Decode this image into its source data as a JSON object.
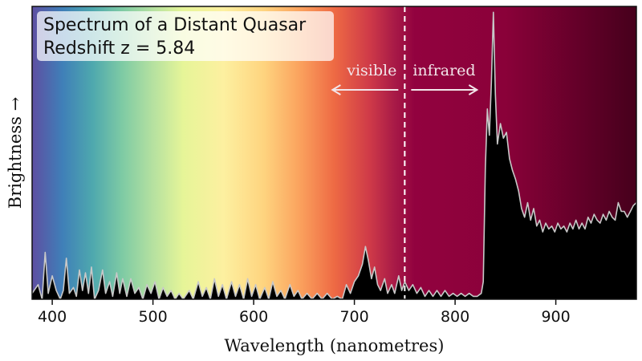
{
  "chart_data": {
    "type": "area",
    "title": "Spectrum of a Distant Quasar",
    "subtitle": "Redshift z = 5.84",
    "xlabel": "Wavelength (nanometres)",
    "ylabel": "Brightness →",
    "xlim": [
      380,
      980
    ],
    "ylim": [
      0,
      1
    ],
    "xticks": [
      400,
      500,
      600,
      700,
      800,
      900
    ],
    "yticks": [],
    "grid": false,
    "divider_x": 750,
    "annotations": [
      {
        "text": "visible",
        "direction": "left"
      },
      {
        "text": "infrared",
        "direction": "right"
      }
    ],
    "background_gradient": [
      {
        "x": 380,
        "color": "#5e4fa2"
      },
      {
        "x": 410,
        "color": "#3f7fb8"
      },
      {
        "x": 440,
        "color": "#4ea8ae"
      },
      {
        "x": 470,
        "color": "#7fcba4"
      },
      {
        "x": 500,
        "color": "#b5e1a0"
      },
      {
        "x": 530,
        "color": "#e6f598"
      },
      {
        "x": 570,
        "color": "#fdf0a0"
      },
      {
        "x": 610,
        "color": "#fed47f"
      },
      {
        "x": 645,
        "color": "#fba35e"
      },
      {
        "x": 680,
        "color": "#ee6a44"
      },
      {
        "x": 715,
        "color": "#cf3a48"
      },
      {
        "x": 740,
        "color": "#a81a47"
      },
      {
        "x": 760,
        "color": "#92023f"
      },
      {
        "x": 850,
        "color": "#8a0139"
      },
      {
        "x": 980,
        "color": "#46001c"
      }
    ],
    "series": [
      {
        "values": [
          [
            380,
            0.02
          ],
          [
            386,
            0.05
          ],
          [
            390,
            0.0
          ],
          [
            393,
            0.16
          ],
          [
            396,
            0.02
          ],
          [
            400,
            0.08
          ],
          [
            404,
            0.03
          ],
          [
            408,
            0.0
          ],
          [
            411,
            0.03
          ],
          [
            414,
            0.14
          ],
          [
            417,
            0.02
          ],
          [
            421,
            0.04
          ],
          [
            424,
            0.01
          ],
          [
            427,
            0.1
          ],
          [
            430,
            0.03
          ],
          [
            433,
            0.09
          ],
          [
            436,
            0.02
          ],
          [
            439,
            0.11
          ],
          [
            442,
            0.0
          ],
          [
            446,
            0.03
          ],
          [
            450,
            0.1
          ],
          [
            453,
            0.02
          ],
          [
            457,
            0.06
          ],
          [
            460,
            0.01
          ],
          [
            464,
            0.09
          ],
          [
            467,
            0.02
          ],
          [
            470,
            0.07
          ],
          [
            474,
            0.01
          ],
          [
            478,
            0.07
          ],
          [
            482,
            0.02
          ],
          [
            486,
            0.04
          ],
          [
            490,
            0.0
          ],
          [
            494,
            0.05
          ],
          [
            498,
            0.02
          ],
          [
            502,
            0.06
          ],
          [
            506,
            0.0
          ],
          [
            510,
            0.04
          ],
          [
            514,
            0.01
          ],
          [
            518,
            0.03
          ],
          [
            522,
            0.0
          ],
          [
            526,
            0.02
          ],
          [
            530,
            0.0
          ],
          [
            536,
            0.03
          ],
          [
            540,
            0.0
          ],
          [
            545,
            0.06
          ],
          [
            549,
            0.01
          ],
          [
            553,
            0.04
          ],
          [
            557,
            0.0
          ],
          [
            561,
            0.07
          ],
          [
            565,
            0.01
          ],
          [
            569,
            0.05
          ],
          [
            573,
            0.0
          ],
          [
            578,
            0.06
          ],
          [
            582,
            0.01
          ],
          [
            586,
            0.05
          ],
          [
            590,
            0.0
          ],
          [
            594,
            0.07
          ],
          [
            598,
            0.01
          ],
          [
            602,
            0.05
          ],
          [
            606,
            0.0
          ],
          [
            611,
            0.04
          ],
          [
            615,
            0.0
          ],
          [
            619,
            0.06
          ],
          [
            623,
            0.01
          ],
          [
            627,
            0.03
          ],
          [
            631,
            0.0
          ],
          [
            636,
            0.05
          ],
          [
            640,
            0.01
          ],
          [
            644,
            0.03
          ],
          [
            648,
            0.0
          ],
          [
            653,
            0.02
          ],
          [
            658,
            0.0
          ],
          [
            663,
            0.02
          ],
          [
            668,
            0.0
          ],
          [
            673,
            0.02
          ],
          [
            678,
            0.0
          ],
          [
            683,
            0.01
          ],
          [
            688,
            0.0
          ],
          [
            692,
            0.05
          ],
          [
            696,
            0.02
          ],
          [
            700,
            0.06
          ],
          [
            704,
            0.08
          ],
          [
            708,
            0.12
          ],
          [
            711,
            0.18
          ],
          [
            714,
            0.13
          ],
          [
            717,
            0.07
          ],
          [
            720,
            0.11
          ],
          [
            723,
            0.05
          ],
          [
            726,
            0.03
          ],
          [
            730,
            0.07
          ],
          [
            733,
            0.02
          ],
          [
            737,
            0.05
          ],
          [
            740,
            0.02
          ],
          [
            744,
            0.08
          ],
          [
            747,
            0.03
          ],
          [
            750,
            0.06
          ],
          [
            754,
            0.03
          ],
          [
            758,
            0.05
          ],
          [
            762,
            0.02
          ],
          [
            766,
            0.04
          ],
          [
            770,
            0.01
          ],
          [
            774,
            0.03
          ],
          [
            778,
            0.01
          ],
          [
            782,
            0.03
          ],
          [
            786,
            0.01
          ],
          [
            790,
            0.03
          ],
          [
            794,
            0.01
          ],
          [
            798,
            0.02
          ],
          [
            802,
            0.01
          ],
          [
            806,
            0.02
          ],
          [
            810,
            0.01
          ],
          [
            814,
            0.02
          ],
          [
            818,
            0.01
          ],
          [
            822,
            0.01
          ],
          [
            826,
            0.02
          ],
          [
            828,
            0.06
          ],
          [
            830,
            0.45
          ],
          [
            832,
            0.65
          ],
          [
            834,
            0.56
          ],
          [
            836,
            0.74
          ],
          [
            838,
            0.98
          ],
          [
            840,
            0.7
          ],
          [
            842,
            0.53
          ],
          [
            845,
            0.6
          ],
          [
            848,
            0.55
          ],
          [
            851,
            0.57
          ],
          [
            854,
            0.48
          ],
          [
            857,
            0.44
          ],
          [
            860,
            0.41
          ],
          [
            863,
            0.37
          ],
          [
            866,
            0.31
          ],
          [
            869,
            0.28
          ],
          [
            872,
            0.33
          ],
          [
            875,
            0.27
          ],
          [
            878,
            0.31
          ],
          [
            881,
            0.25
          ],
          [
            884,
            0.27
          ],
          [
            887,
            0.23
          ],
          [
            890,
            0.26
          ],
          [
            893,
            0.24
          ],
          [
            896,
            0.25
          ],
          [
            899,
            0.23
          ],
          [
            902,
            0.26
          ],
          [
            905,
            0.24
          ],
          [
            908,
            0.25
          ],
          [
            911,
            0.23
          ],
          [
            914,
            0.26
          ],
          [
            917,
            0.24
          ],
          [
            920,
            0.27
          ],
          [
            923,
            0.24
          ],
          [
            926,
            0.26
          ],
          [
            929,
            0.24
          ],
          [
            932,
            0.28
          ],
          [
            935,
            0.26
          ],
          [
            938,
            0.29
          ],
          [
            941,
            0.27
          ],
          [
            944,
            0.26
          ],
          [
            947,
            0.29
          ],
          [
            950,
            0.27
          ],
          [
            953,
            0.3
          ],
          [
            956,
            0.28
          ],
          [
            959,
            0.27
          ],
          [
            962,
            0.33
          ],
          [
            965,
            0.3
          ],
          [
            968,
            0.3
          ],
          [
            971,
            0.28
          ],
          [
            974,
            0.3
          ],
          [
            977,
            0.32
          ],
          [
            980,
            0.33
          ]
        ],
        "fill": "#000000",
        "stroke": "#c8c8c8"
      }
    ]
  }
}
